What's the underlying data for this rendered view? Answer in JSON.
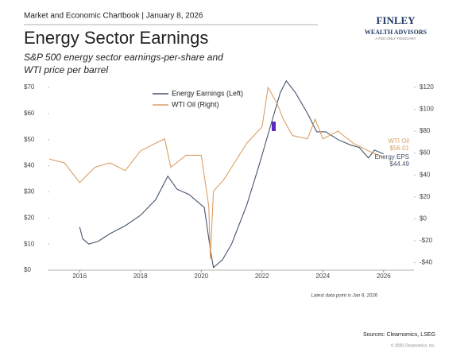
{
  "header": {
    "chartbook": "Market and Economic Chartbook | January 8, 2026",
    "logo_name": "FINLEY",
    "logo_sub": "WEALTH ADVISORS",
    "logo_tag": "A FEE ONLY FIDUCIARY"
  },
  "chart_data": {
    "type": "line",
    "title": "Energy Sector Earnings",
    "subtitle": [
      "S&P 500 energy sector earnings-per-share and",
      "WTI price per barrel"
    ],
    "xlim": [
      2015,
      2027
    ],
    "xticks": [
      2016,
      2018,
      2020,
      2022,
      2024,
      2026
    ],
    "ylim": [
      0,
      70
    ],
    "yticks": [
      {
        "value": 0,
        "label": "$0"
      },
      {
        "value": 10,
        "label": "$10"
      },
      {
        "value": 20,
        "label": "$20"
      },
      {
        "value": 30,
        "label": "$30"
      },
      {
        "value": 40,
        "label": "$40"
      },
      {
        "value": 50,
        "label": "$50"
      },
      {
        "value": 60,
        "label": "$60"
      },
      {
        "value": 70,
        "label": "$70"
      }
    ],
    "y2lim": [
      -47,
      120
    ],
    "y2ticks": [
      {
        "value": -40,
        "label": "-$40"
      },
      {
        "value": -20,
        "label": "-$20"
      },
      {
        "value": 0,
        "label": "$0"
      },
      {
        "value": 20,
        "label": "$20"
      },
      {
        "value": 40,
        "label": "$40"
      },
      {
        "value": 60,
        "label": "$60"
      },
      {
        "value": 80,
        "label": "$80"
      },
      {
        "value": 100,
        "label": "$100"
      },
      {
        "value": 120,
        "label": "$120"
      }
    ],
    "series": [
      {
        "name": "Energy Earnings (Left)",
        "color": "#44546a",
        "axis": "y",
        "x": [
          2016.0,
          2016.1,
          2016.3,
          2016.6,
          2017.0,
          2017.5,
          2018.0,
          2018.5,
          2018.9,
          2019.2,
          2019.6,
          2019.9,
          2020.1,
          2020.3,
          2020.4,
          2020.7,
          2021.0,
          2021.5,
          2021.9,
          2022.3,
          2022.6,
          2022.8,
          2023.1,
          2023.5,
          2023.8,
          2024.1,
          2024.5,
          2024.9,
          2025.2,
          2025.5,
          2025.7,
          2026.0
        ],
        "values": [
          16.5,
          12,
          10,
          11,
          14,
          17,
          21,
          27,
          36,
          31,
          29,
          26,
          24,
          8,
          1,
          4,
          10,
          25,
          40,
          56,
          68,
          72.5,
          68,
          60,
          53,
          53,
          50,
          48,
          47,
          43,
          46,
          44.49
        ]
      },
      {
        "name": "WTI Oil (Right)",
        "color": "#d9a066",
        "axis": "y2",
        "x": [
          2015.0,
          2015.5,
          2016.0,
          2016.5,
          2017.0,
          2017.5,
          2018.0,
          2018.5,
          2018.8,
          2019.0,
          2019.5,
          2020.0,
          2020.25,
          2020.3,
          2020.4,
          2020.75,
          2021.0,
          2021.5,
          2022.0,
          2022.2,
          2022.5,
          2022.7,
          2023.0,
          2023.5,
          2023.75,
          2024.0,
          2024.5,
          2025.0,
          2025.5,
          2026.0
        ],
        "values": [
          54.5,
          51,
          33,
          47,
          51,
          44,
          62,
          69,
          73,
          47,
          58,
          58,
          11,
          -37,
          25,
          36,
          47,
          69,
          84,
          120,
          105,
          91,
          76,
          73,
          91,
          73,
          80,
          69,
          62,
          56.01
        ]
      }
    ],
    "annotations": [
      {
        "text": "WTI Oil",
        "value": "$56.01"
      },
      {
        "text": "Energy EPS",
        "value": "$44.49"
      }
    ],
    "note": "Latest data point is Jan 6, 2026",
    "source": "Sources: Clearnomics, LSEG",
    "copyright": "© 2026 Clearnomics, Inc."
  }
}
